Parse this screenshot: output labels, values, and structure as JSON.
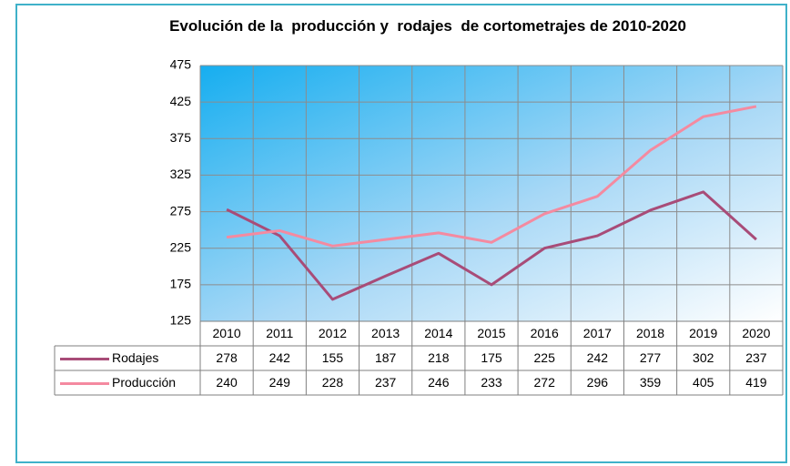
{
  "chart_data": {
    "type": "line",
    "title": "Evolución de la  producción y  rodajes  de cortometrajes de 2010-2020",
    "categories": [
      "2010",
      "2011",
      "2012",
      "2013",
      "2014",
      "2015",
      "2016",
      "2017",
      "2018",
      "2019",
      "2020"
    ],
    "series": [
      {
        "name": "Rodajes",
        "color": "#a84c78",
        "values": [
          278,
          242,
          155,
          187,
          218,
          175,
          225,
          242,
          277,
          302,
          237
        ]
      },
      {
        "name": "Producción",
        "color": "#f48aa0",
        "values": [
          240,
          249,
          228,
          237,
          246,
          233,
          272,
          296,
          359,
          405,
          419
        ]
      }
    ],
    "ylim": [
      125,
      475
    ],
    "yticks": [
      125,
      175,
      225,
      275,
      325,
      375,
      425,
      475
    ],
    "grid": true,
    "data_table": true
  }
}
